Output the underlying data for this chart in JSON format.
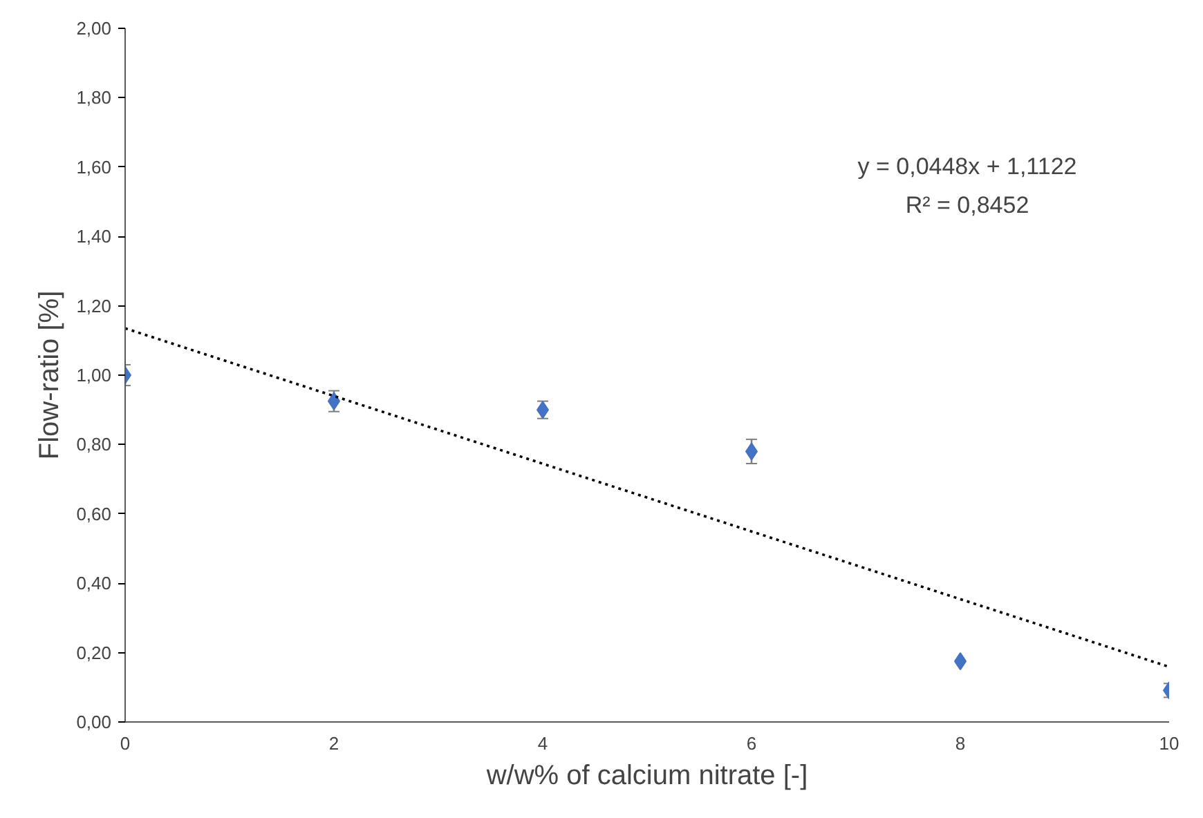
{
  "chart_data": {
    "type": "scatter",
    "xlabel": "w/w% of calcium nitrate [-]",
    "ylabel": "Flow-ratio [%]",
    "x": [
      0,
      2,
      4,
      6,
      8,
      10
    ],
    "xlim": [
      0,
      10
    ],
    "xticks": [
      0,
      2,
      4,
      6,
      8,
      10
    ],
    "ylim": [
      0,
      2
    ],
    "yticks": [
      {
        "value": 0,
        "label": "0,00"
      },
      {
        "value": 0.2,
        "label": "0,20"
      },
      {
        "value": 0.4,
        "label": "0,40"
      },
      {
        "value": 0.6,
        "label": "0,60"
      },
      {
        "value": 0.8,
        "label": "0,80"
      },
      {
        "value": 1.0,
        "label": "1,00"
      },
      {
        "value": 1.2,
        "label": "1,20"
      },
      {
        "value": 1.4,
        "label": "1,40"
      },
      {
        "value": 1.6,
        "label": "1,60"
      },
      {
        "value": 1.8,
        "label": "1,80"
      },
      {
        "value": 2.0,
        "label": "2,00"
      }
    ],
    "grid": false,
    "series": [
      {
        "color": "#4472c4",
        "marker": "diamond",
        "values": [
          1.0,
          0.925,
          0.9,
          0.78,
          0.175,
          0.091
        ],
        "errors": [
          0.03,
          0.03,
          0.025,
          0.035,
          null,
          0.02
        ]
      },
      {
        "type": "line",
        "color": "#000000",
        "line_style": "dotted",
        "marker": "none",
        "x": [
          0,
          10
        ],
        "values": [
          1.135,
          0.159
        ]
      }
    ],
    "annotations": [
      "y = 0,0448x + 1,1122",
      "R² = 0,8452"
    ]
  }
}
